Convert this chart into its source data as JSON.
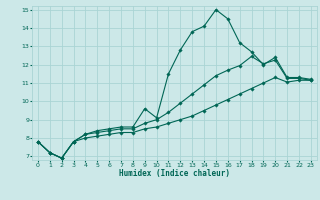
{
  "xlabel": "Humidex (Indice chaleur)",
  "bg_color": "#cce8e8",
  "grid_color": "#aad4d4",
  "line_color": "#006655",
  "xlim": [
    -0.5,
    23.5
  ],
  "ylim": [
    6.8,
    15.2
  ],
  "xticks": [
    0,
    1,
    2,
    3,
    4,
    5,
    6,
    7,
    8,
    9,
    10,
    11,
    12,
    13,
    14,
    15,
    16,
    17,
    18,
    19,
    20,
    21,
    22,
    23
  ],
  "yticks": [
    7,
    8,
    9,
    10,
    11,
    12,
    13,
    14,
    15
  ],
  "line1_x": [
    0,
    1,
    2,
    3,
    4,
    5,
    6,
    7,
    8,
    9,
    10,
    11,
    12,
    13,
    14,
    15,
    16,
    17,
    18,
    19,
    20,
    21,
    22,
    23
  ],
  "line1_y": [
    7.8,
    7.2,
    6.9,
    7.8,
    8.2,
    8.4,
    8.5,
    8.6,
    8.6,
    9.6,
    9.1,
    11.5,
    12.8,
    13.8,
    14.1,
    15.0,
    14.5,
    13.2,
    12.7,
    12.0,
    12.4,
    11.3,
    11.3,
    11.2
  ],
  "line2_x": [
    0,
    1,
    2,
    3,
    4,
    5,
    6,
    7,
    8,
    9,
    10,
    11,
    12,
    13,
    14,
    15,
    16,
    17,
    18,
    19,
    20,
    21,
    22,
    23
  ],
  "line2_y": [
    7.8,
    7.2,
    6.9,
    7.8,
    8.2,
    8.3,
    8.4,
    8.5,
    8.5,
    8.8,
    9.0,
    9.4,
    9.9,
    10.4,
    10.9,
    11.4,
    11.7,
    11.95,
    12.45,
    12.05,
    12.25,
    11.25,
    11.25,
    11.15
  ],
  "line3_x": [
    0,
    1,
    2,
    3,
    4,
    5,
    6,
    7,
    8,
    9,
    10,
    11,
    12,
    13,
    14,
    15,
    16,
    17,
    18,
    19,
    20,
    21,
    22,
    23
  ],
  "line3_y": [
    7.8,
    7.2,
    6.9,
    7.8,
    8.0,
    8.1,
    8.2,
    8.3,
    8.3,
    8.5,
    8.6,
    8.8,
    9.0,
    9.2,
    9.5,
    9.8,
    10.1,
    10.4,
    10.7,
    11.0,
    11.3,
    11.05,
    11.15,
    11.15
  ]
}
